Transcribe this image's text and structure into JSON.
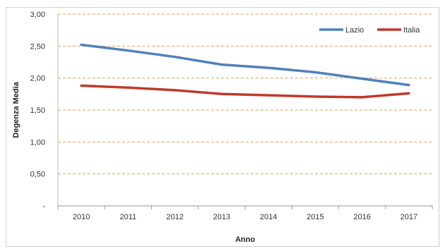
{
  "chart_data": {
    "type": "line",
    "categories": [
      "2010",
      "2011",
      "2012",
      "2013",
      "2014",
      "2015",
      "2016",
      "2017"
    ],
    "series": [
      {
        "name": "Lazio",
        "color": "#4f81bd",
        "values": [
          2.52,
          2.43,
          2.33,
          2.21,
          2.16,
          2.09,
          1.99,
          1.89
        ]
      },
      {
        "name": "Italia",
        "color": "#c0392b",
        "values": [
          1.88,
          1.85,
          1.81,
          1.75,
          1.73,
          1.71,
          1.7,
          1.76
        ]
      }
    ],
    "yticks": [
      "-",
      "0,50",
      "1,00",
      "1,50",
      "2,00",
      "2,50",
      "3,00"
    ],
    "ytick_values": [
      0,
      0.5,
      1.0,
      1.5,
      2.0,
      2.5,
      3.0
    ],
    "xlabel": "Anno",
    "ylabel": "Degenza Media",
    "ylim": [
      0,
      3
    ],
    "grid": true,
    "legend": "top-right"
  }
}
